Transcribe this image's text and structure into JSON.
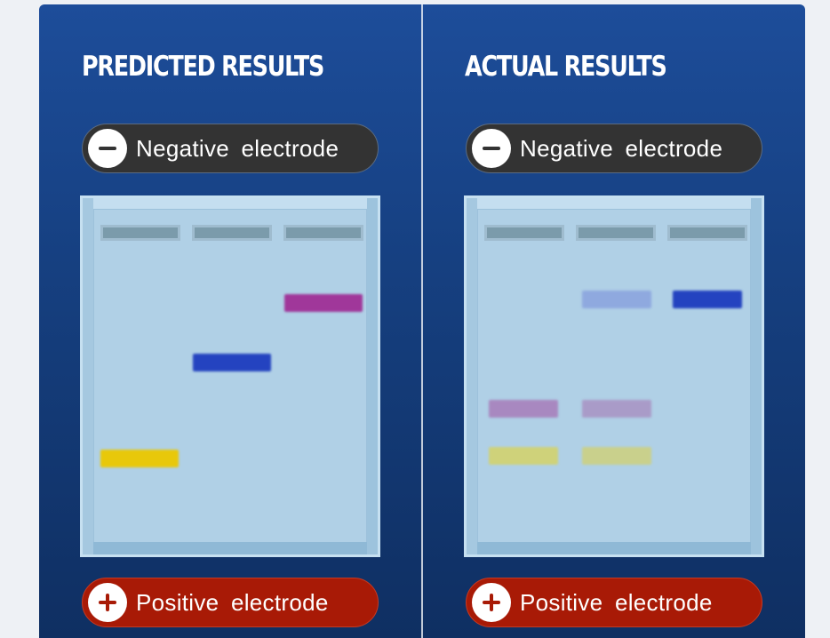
{
  "panels": [
    {
      "title": "PREDICTED RESULTS",
      "negative_label": "Negative electrode",
      "positive_label": "Positive electrode",
      "wells": 3,
      "bands": [
        {
          "lane": 3,
          "color": "#a0379a",
          "row": "high",
          "opacity": 1
        },
        {
          "lane": 2,
          "color": "#2443c0",
          "row": "middle",
          "opacity": 1
        },
        {
          "lane": 1,
          "color": "#e8c80a",
          "row": "low",
          "opacity": 1
        }
      ]
    },
    {
      "title": "ACTUAL RESULTS",
      "negative_label": "Negative electrode",
      "positive_label": "Positive electrode",
      "wells": 3,
      "bands": [
        {
          "lane": 2,
          "color": "#8fa9df",
          "row": "high",
          "opacity": 1
        },
        {
          "lane": 3,
          "color": "#2443c0",
          "row": "high",
          "opacity": 1
        },
        {
          "lane": 1,
          "color": "#a888c0",
          "row": "lower-middle",
          "opacity": 1
        },
        {
          "lane": 2,
          "color": "#a99bc8",
          "row": "lower-middle",
          "opacity": 1
        },
        {
          "lane": 1,
          "color": "#cfd27a",
          "row": "low",
          "opacity": 1
        },
        {
          "lane": 2,
          "color": "#c9d08c",
          "row": "low",
          "opacity": 1
        }
      ]
    }
  ],
  "colors": {
    "card_top": "#1d4d9a",
    "card_bottom": "#0f2f62",
    "negative_pill": "#333333",
    "positive_pill": "#a81a06",
    "gel": "#b0d0e6"
  }
}
